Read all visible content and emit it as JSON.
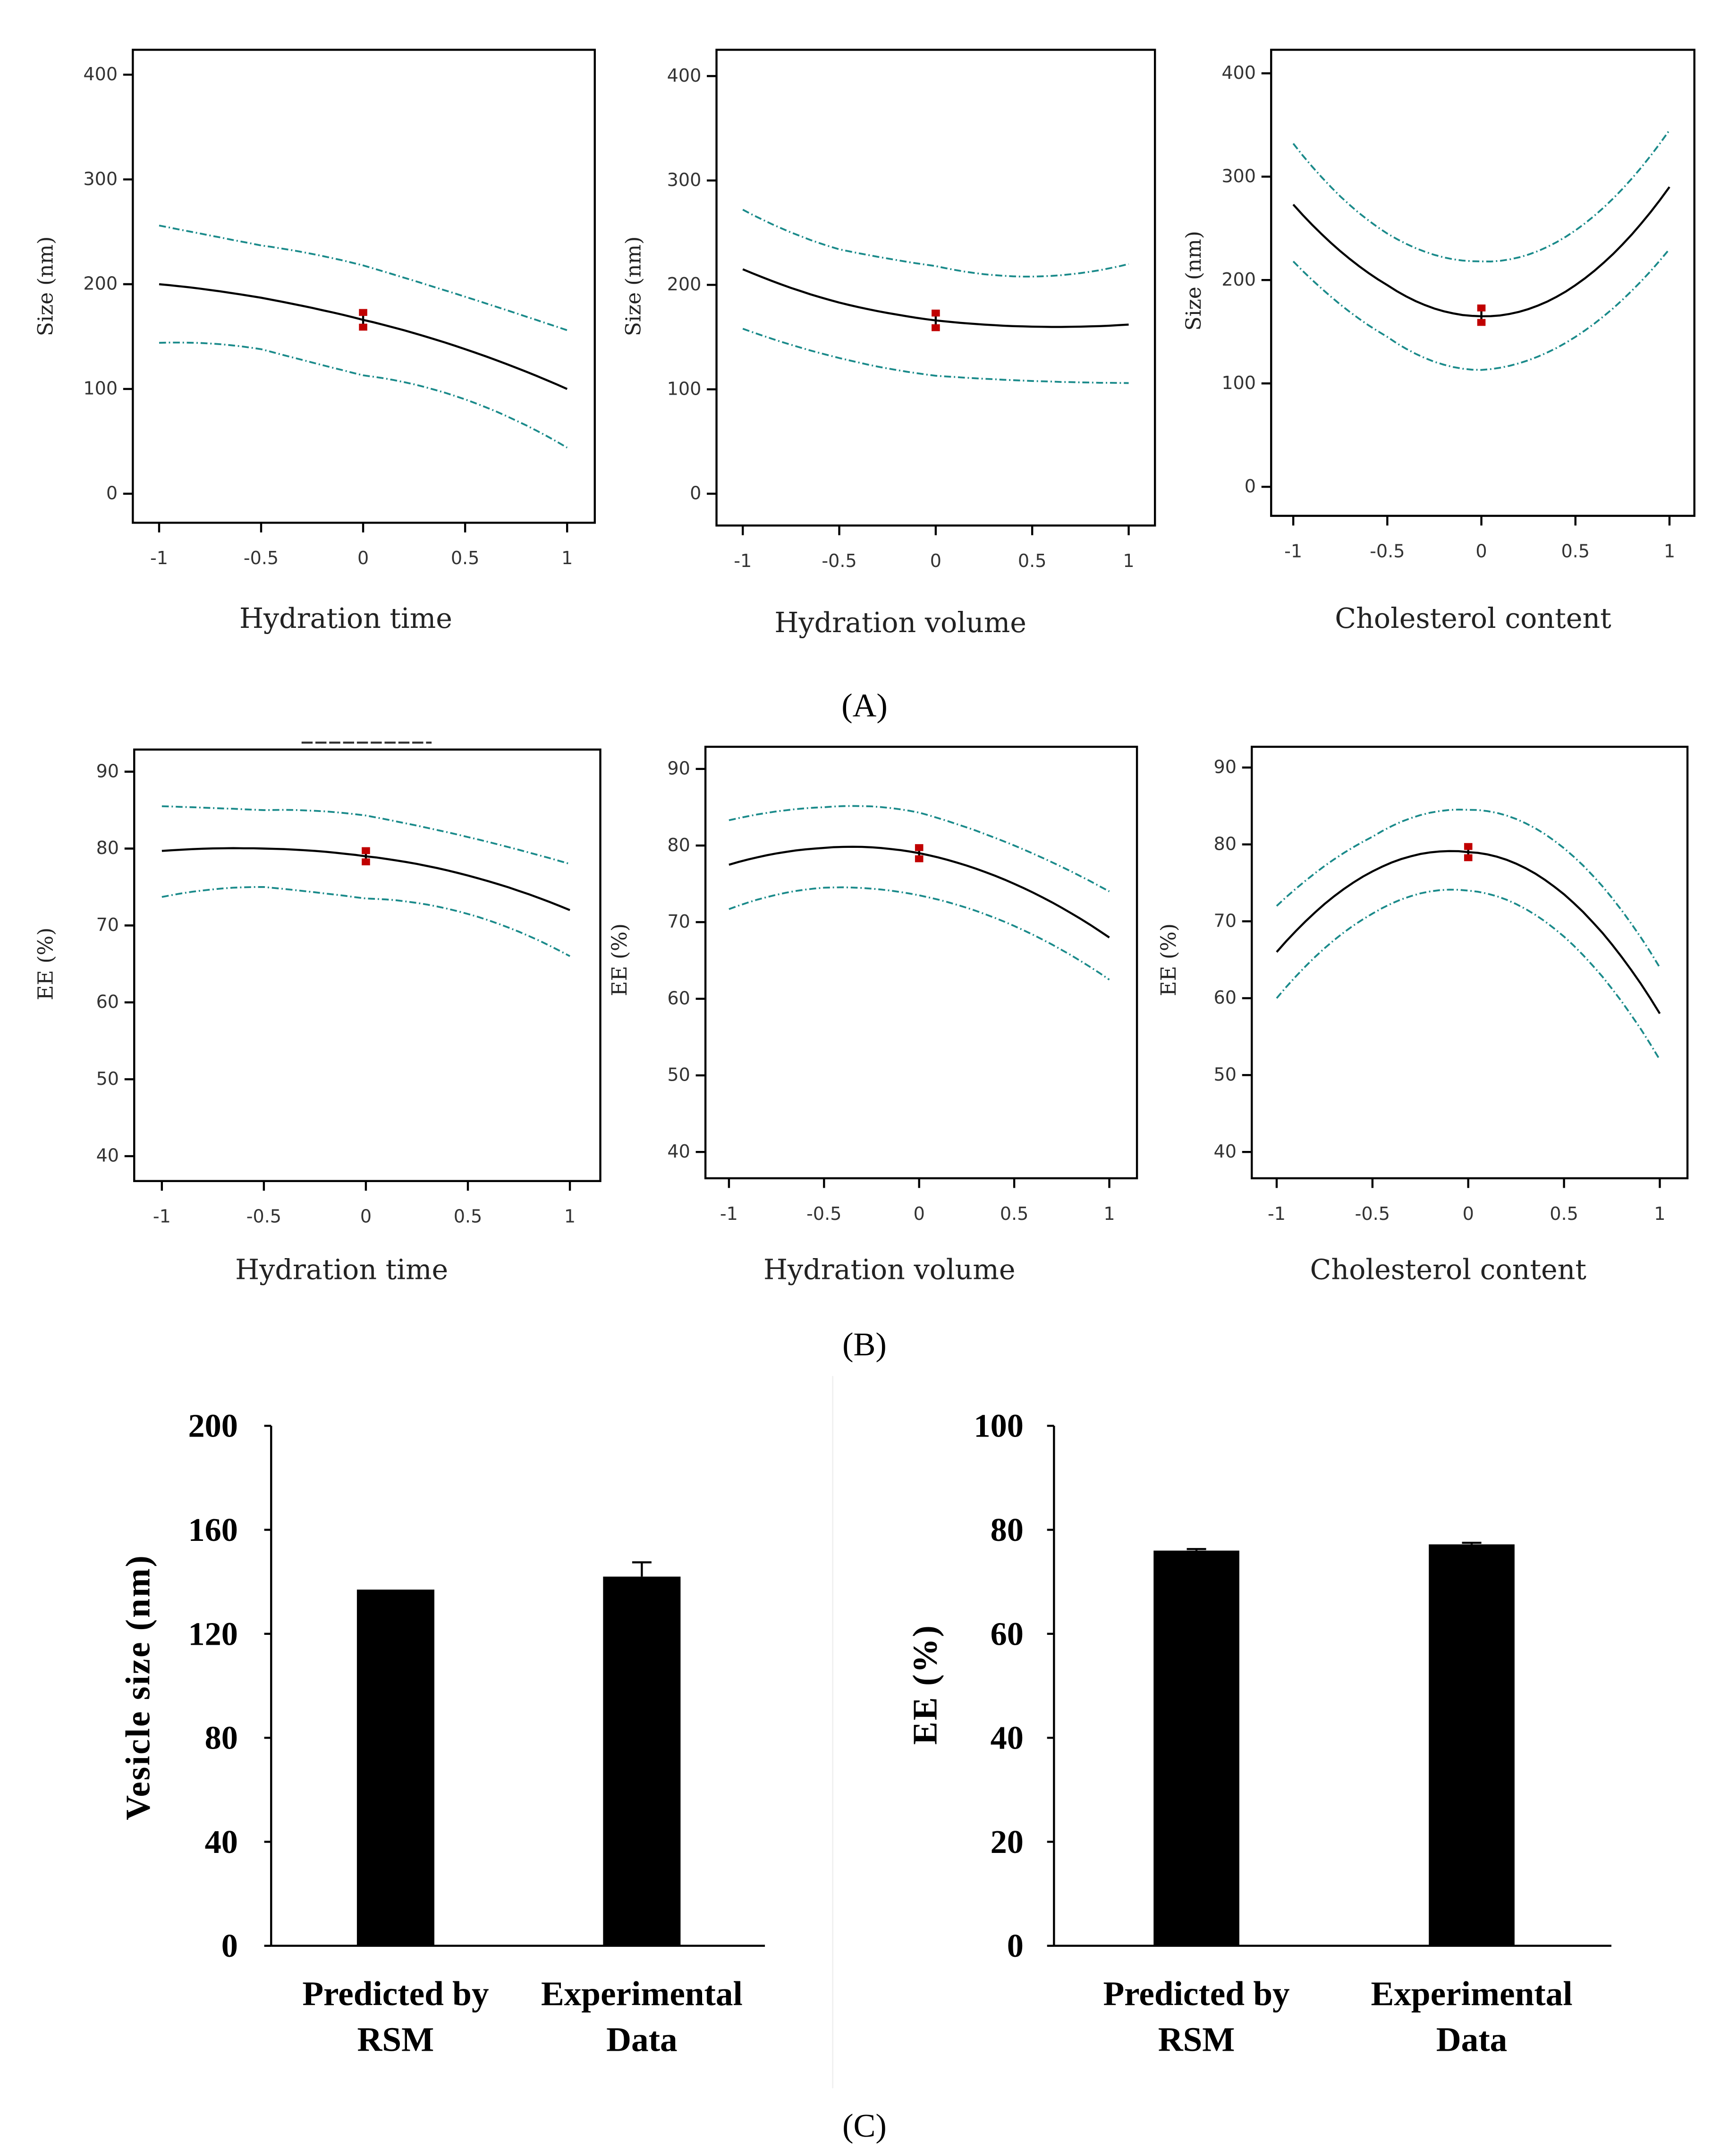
{
  "captions": {
    "A": "(A)",
    "B": "(B)",
    "C": "(C)"
  },
  "colors": {
    "mean": "#000000",
    "ci": "#1a8a8a",
    "point": "#c00000",
    "bar": "#000000"
  },
  "chart_data": [
    {
      "type": "line",
      "panel": "A1",
      "xlabel": "Hydration time",
      "ylabel": "Size (nm)",
      "xlim": [
        -1,
        1
      ],
      "ylim": [
        0,
        400
      ],
      "xticks": [
        -1,
        -0.5,
        0,
        0.5,
        1
      ],
      "xtick_labels": [
        "-1",
        "-0.5",
        "0",
        "0.5",
        "1"
      ],
      "yticks": [
        0,
        100,
        200,
        300,
        400
      ],
      "x": [
        -1,
        -0.5,
        0,
        0.5,
        1
      ],
      "series": [
        {
          "name": "prediction",
          "values": [
            200,
            187,
            166,
            138,
            100
          ]
        },
        {
          "name": "upper CI",
          "values": [
            256,
            237,
            218,
            188,
            156
          ]
        },
        {
          "name": "lower CI",
          "values": [
            144,
            138,
            113,
            90,
            44
          ]
        }
      ],
      "design_point": {
        "x": 0,
        "y": 166,
        "err": 9
      }
    },
    {
      "type": "line",
      "panel": "A2",
      "xlabel": "Hydration volume",
      "ylabel": "Size (nm)",
      "xlim": [
        -1,
        1
      ],
      "ylim": [
        0,
        400
      ],
      "xticks": [
        -1,
        -0.5,
        0,
        0.5,
        1
      ],
      "xtick_labels": [
        "-1",
        "-0.5",
        "0",
        "0.5",
        "1"
      ],
      "yticks": [
        0,
        100,
        200,
        300,
        400
      ],
      "x": [
        -1,
        -0.5,
        0,
        0.5,
        1
      ],
      "series": [
        {
          "name": "prediction",
          "values": [
            215,
            183,
            166,
            160,
            162
          ]
        },
        {
          "name": "upper CI",
          "values": [
            272,
            234,
            218,
            208,
            220
          ]
        },
        {
          "name": "lower CI",
          "values": [
            158,
            130,
            113,
            108,
            106
          ]
        }
      ],
      "design_point": {
        "x": 0,
        "y": 166,
        "err": 9
      }
    },
    {
      "type": "line",
      "panel": "A3",
      "xlabel": "Cholesterol content",
      "ylabel": "Size (nm)",
      "xlim": [
        -1,
        1
      ],
      "ylim": [
        0,
        400
      ],
      "xticks": [
        -1,
        -0.5,
        0,
        0.5,
        1
      ],
      "xtick_labels": [
        "-1",
        "-0.5",
        "0",
        "0.5",
        "1"
      ],
      "yticks": [
        0,
        100,
        200,
        300,
        400
      ],
      "x": [
        -1,
        -0.5,
        0,
        0.5,
        1
      ],
      "series": [
        {
          "name": "prediction",
          "values": [
            273,
            195,
            165,
            195,
            290
          ]
        },
        {
          "name": "upper CI",
          "values": [
            332,
            245,
            218,
            248,
            345
          ]
        },
        {
          "name": "lower CI",
          "values": [
            218,
            145,
            113,
            145,
            230
          ]
        }
      ],
      "design_point": {
        "x": 0,
        "y": 166,
        "err": 9
      }
    },
    {
      "type": "line",
      "panel": "B1",
      "xlabel": "Hydration time",
      "ylabel": "EE (%)",
      "xlim": [
        -1,
        1
      ],
      "ylim": [
        40,
        90
      ],
      "xticks": [
        -1,
        -0.5,
        0,
        0.5,
        1
      ],
      "xtick_labels": [
        "-1",
        "-0.5",
        "0",
        "0.5",
        "1"
      ],
      "yticks": [
        40,
        50,
        60,
        70,
        80,
        90
      ],
      "x": [
        -1,
        -0.5,
        0,
        0.5,
        1
      ],
      "series": [
        {
          "name": "prediction",
          "values": [
            79.7,
            80,
            79,
            76.5,
            72
          ]
        },
        {
          "name": "upper CI",
          "values": [
            85.5,
            85,
            84.3,
            81.5,
            78
          ]
        },
        {
          "name": "lower CI",
          "values": [
            73.7,
            75,
            73.5,
            71.5,
            66
          ]
        }
      ],
      "design_point": {
        "x": 0,
        "y": 79,
        "err": 1
      }
    },
    {
      "type": "line",
      "panel": "B2",
      "xlabel": "Hydration volume",
      "ylabel": "EE (%)",
      "xlim": [
        -1,
        1
      ],
      "ylim": [
        40,
        90
      ],
      "xticks": [
        -1,
        -0.5,
        0,
        0.5,
        1
      ],
      "xtick_labels": [
        "-1",
        "-0.5",
        "0",
        "0.5",
        "1"
      ],
      "yticks": [
        40,
        50,
        60,
        70,
        80,
        90
      ],
      "x": [
        -1,
        -0.5,
        0,
        0.5,
        1
      ],
      "series": [
        {
          "name": "prediction",
          "values": [
            77.5,
            79.7,
            79,
            75,
            68
          ]
        },
        {
          "name": "upper CI",
          "values": [
            83.3,
            85,
            84.3,
            80,
            74
          ]
        },
        {
          "name": "lower CI",
          "values": [
            71.7,
            74.5,
            73.5,
            69.5,
            62.5
          ]
        }
      ],
      "design_point": {
        "x": 0,
        "y": 79,
        "err": 1
      }
    },
    {
      "type": "line",
      "panel": "B3",
      "xlabel": "Cholesterol content",
      "ylabel": "EE (%)",
      "xlim": [
        -1,
        1
      ],
      "ylim": [
        40,
        90
      ],
      "xticks": [
        -1,
        -0.5,
        0,
        0.5,
        1
      ],
      "xtick_labels": [
        "-1",
        "-0.5",
        "0",
        "0.5",
        "1"
      ],
      "yticks": [
        40,
        50,
        60,
        70,
        80,
        90
      ],
      "x": [
        -1,
        -0.5,
        0,
        0.5,
        1
      ],
      "series": [
        {
          "name": "prediction",
          "values": [
            66,
            76.5,
            79,
            73.5,
            58
          ]
        },
        {
          "name": "upper CI",
          "values": [
            72,
            81,
            84.5,
            79.5,
            64
          ]
        },
        {
          "name": "lower CI",
          "values": [
            60,
            71,
            74,
            68,
            52
          ]
        }
      ],
      "design_point": {
        "x": 0,
        "y": 79,
        "err": 1
      }
    },
    {
      "type": "bar",
      "panel": "C1",
      "ylabel": "Vesicle size (nm)",
      "ylim": [
        0,
        200
      ],
      "yticks": [
        0,
        40,
        80,
        120,
        160,
        200
      ],
      "categories": [
        [
          "Predicted by",
          "RSM"
        ],
        [
          "Experimental",
          "Data"
        ]
      ],
      "values": [
        137,
        142
      ],
      "errors": [
        0,
        5.5
      ]
    },
    {
      "type": "bar",
      "panel": "C2",
      "ylabel": "EE (%)",
      "ylim": [
        0,
        100
      ],
      "yticks": [
        0,
        20,
        40,
        60,
        80,
        100
      ],
      "categories": [
        [
          "Predicted by",
          "RSM"
        ],
        [
          "Experimental",
          "Data"
        ]
      ],
      "values": [
        76,
        77.2
      ],
      "errors": [
        0.3,
        0.3
      ]
    }
  ]
}
